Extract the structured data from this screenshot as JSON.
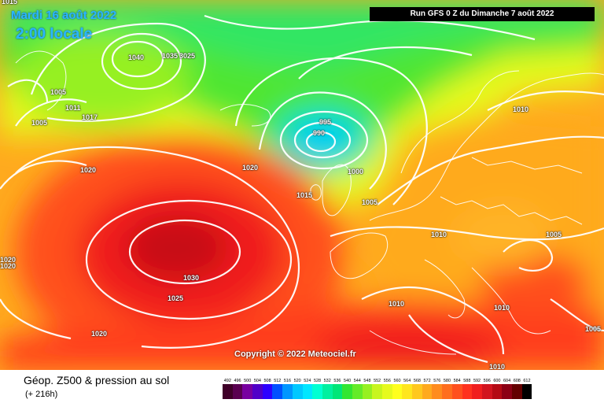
{
  "header": {
    "date": "Mardi 16 août 2022",
    "time": "2:00 locale",
    "run": "Run GFS 0 Z du Dimanche 7 août 2022"
  },
  "copyright": "Copyright © 2022 Meteociel.fr",
  "footer": {
    "title": "Géop. Z500 & pression au sol",
    "subtitle": "(+ 216h)"
  },
  "pressure_labels": [
    "1015",
    "1040",
    "1035",
    "3025",
    "1005",
    "1011",
    "1005",
    "1017",
    "995",
    "990",
    "1000",
    "1020",
    "1020",
    "1015",
    "1005",
    "1010",
    "1010",
    "1005",
    "1020",
    "1020",
    "1030",
    "1025",
    "1020",
    "1010",
    "1005",
    "1010"
  ],
  "legend": {
    "values": [
      "492",
      "496",
      "500",
      "504",
      "508",
      "512",
      "516",
      "520",
      "524",
      "528",
      "532",
      "536",
      "540",
      "544",
      "548",
      "552",
      "556",
      "560",
      "564",
      "568",
      "572",
      "576",
      "580",
      "584",
      "588",
      "592",
      "596",
      "600",
      "604",
      "608",
      "612"
    ],
    "colors": [
      "#3f0028",
      "#5a0050",
      "#7800a0",
      "#5000c8",
      "#2d00ff",
      "#0050ff",
      "#0096ff",
      "#00c8ff",
      "#00e6ff",
      "#00ffd2",
      "#00f0a0",
      "#00e678",
      "#32e632",
      "#64eb28",
      "#96f020",
      "#c8f51e",
      "#e6fa1e",
      "#ffff1e",
      "#ffe61e",
      "#ffc81e",
      "#ffaa1e",
      "#ff8c1e",
      "#ff6e1e",
      "#ff501e",
      "#ff321e",
      "#f01e1e",
      "#d2141e",
      "#b40a14",
      "#8c0014",
      "#640000",
      "#000000"
    ]
  }
}
